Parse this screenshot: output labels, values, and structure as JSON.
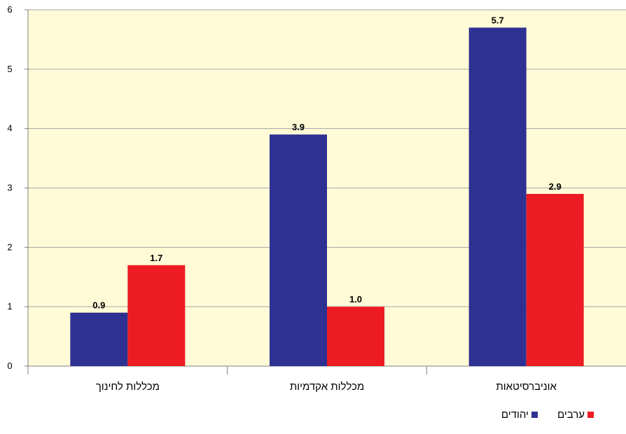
{
  "chart_data": {
    "type": "bar",
    "title": "",
    "xlabel": "",
    "ylabel": "",
    "ylim": [
      0,
      6
    ],
    "yticks": [
      "0",
      "1",
      "2",
      "3",
      "4",
      "5",
      "6"
    ],
    "categories": [
      "מכללות לחינוך",
      "מכללות אקדמיות",
      "אוניברסיטאות"
    ],
    "series": [
      {
        "name": "יהודים",
        "color": "#2e3192",
        "values": [
          0.9,
          3.9,
          5.7
        ],
        "labels": [
          "0.9",
          "3.9",
          "5.7"
        ]
      },
      {
        "name": "ערבים",
        "color": "#ed1c24",
        "values": [
          1.7,
          1.0,
          2.9
        ],
        "labels": [
          "1.7",
          "1.0",
          "2.9"
        ]
      }
    ],
    "grid": true,
    "legend_position": "bottom-right",
    "plot_background": "#fffbd6"
  }
}
